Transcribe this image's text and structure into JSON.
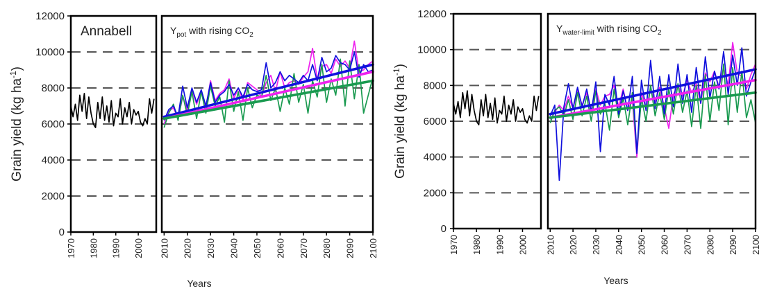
{
  "chart_data": [
    {
      "type": "line",
      "ylabel_main": "Grain yield (kg ha",
      "ylabel_sup": "-1",
      "ylabel_end": ")",
      "xlabel": "Years",
      "ylim": [
        0,
        12000
      ],
      "yticks": [
        0,
        2000,
        4000,
        6000,
        8000,
        10000,
        12000
      ],
      "ytick_labels": [
        "0",
        "2000",
        "4000",
        "6000",
        "8000",
        "10000",
        "12000"
      ],
      "dashed_gridlines": [
        2000,
        4000,
        6000,
        8000,
        10000
      ],
      "historical": {
        "label": "Annabell",
        "xlim": [
          1970,
          2008
        ],
        "xticks": [
          1970,
          1980,
          1990,
          2000
        ],
        "xtick_labels": [
          "1970",
          "1980",
          "1990",
          "2000"
        ],
        "series": [
          {
            "color": "#000000",
            "x": [
              1970,
              1971,
              1972,
              1973,
              1974,
              1975,
              1976,
              1977,
              1978,
              1979,
              1980,
              1981,
              1982,
              1983,
              1984,
              1985,
              1986,
              1987,
              1988,
              1989,
              1990,
              1991,
              1992,
              1993,
              1994,
              1995,
              1996,
              1997,
              1998,
              1999,
              2000,
              2001,
              2002,
              2003,
              2004,
              2005,
              2006,
              2007
            ],
            "y": [
              7000,
              6400,
              7100,
              6200,
              7600,
              6700,
              7700,
              6300,
              7500,
              6600,
              6000,
              5800,
              7200,
              6300,
              7500,
              6200,
              7000,
              6100,
              7300,
              5900,
              6600,
              6400,
              7400,
              6000,
              6900,
              6400,
              7200,
              6000,
              6800,
              6500,
              6700,
              6100,
              5900,
              6300,
              6000,
              7400,
              6600,
              7400
            ]
          }
        ]
      },
      "projection": {
        "title_main": "Y",
        "title_sub": "pot",
        "title_rest": " with rising CO",
        "title_co2sub": "2",
        "xlim": [
          2009,
          2100
        ],
        "xticks": [
          2010,
          2020,
          2030,
          2040,
          2050,
          2060,
          2070,
          2080,
          2090,
          2100
        ],
        "xtick_labels": [
          "2010",
          "2020",
          "2030",
          "2040",
          "2050",
          "2060",
          "2070",
          "2080",
          "2090",
          "2100"
        ],
        "series": [
          {
            "color": "#ee22ee",
            "x": [
              2010,
              2012,
              2014,
              2016,
              2018,
              2020,
              2022,
              2024,
              2026,
              2028,
              2030,
              2032,
              2034,
              2036,
              2038,
              2040,
              2042,
              2044,
              2046,
              2048,
              2050,
              2052,
              2054,
              2056,
              2058,
              2060,
              2062,
              2064,
              2066,
              2068,
              2070,
              2072,
              2074,
              2076,
              2078,
              2080,
              2082,
              2084,
              2086,
              2088,
              2090,
              2092,
              2094,
              2096,
              2098,
              2100
            ],
            "y": [
              6000,
              6700,
              6900,
              6300,
              7500,
              6800,
              7900,
              7100,
              7800,
              6900,
              8400,
              7300,
              7700,
              7900,
              8500,
              7400,
              8000,
              7300,
              8300,
              8100,
              7900,
              7500,
              8300,
              8700,
              7800,
              8900,
              8000,
              8300,
              8400,
              8200,
              8600,
              8900,
              10200,
              8500,
              9200,
              9300,
              8800,
              9600,
              9200,
              9500,
              9100,
              10600,
              8900,
              9000,
              9300,
              9500
            ]
          },
          {
            "color": "#1a9a50",
            "x": [
              2010,
              2012,
              2014,
              2016,
              2018,
              2020,
              2022,
              2024,
              2026,
              2028,
              2030,
              2032,
              2034,
              2036,
              2038,
              2040,
              2042,
              2044,
              2046,
              2048,
              2050,
              2052,
              2054,
              2056,
              2058,
              2060,
              2062,
              2064,
              2066,
              2068,
              2070,
              2072,
              2074,
              2076,
              2078,
              2080,
              2082,
              2084,
              2086,
              2088,
              2090,
              2092,
              2094,
              2096,
              2098,
              2100
            ],
            "y": [
              5800,
              6600,
              7100,
              6200,
              7600,
              6500,
              7800,
              6300,
              7800,
              6600,
              8100,
              7000,
              7500,
              6100,
              8400,
              6700,
              7800,
              6200,
              8000,
              6900,
              7600,
              7500,
              8700,
              7300,
              8000,
              6700,
              8000,
              7100,
              8800,
              7200,
              8200,
              6600,
              8400,
              7500,
              9300,
              7200,
              8500,
              7600,
              9600,
              7000,
              9500,
              7400,
              9300,
              6600,
              7600,
              8600
            ]
          },
          {
            "color": "#1111dd",
            "x": [
              2010,
              2012,
              2014,
              2016,
              2018,
              2020,
              2022,
              2024,
              2026,
              2028,
              2030,
              2032,
              2034,
              2036,
              2038,
              2040,
              2042,
              2044,
              2046,
              2048,
              2050,
              2052,
              2054,
              2056,
              2058,
              2060,
              2062,
              2064,
              2066,
              2068,
              2070,
              2072,
              2074,
              2076,
              2078,
              2080,
              2082,
              2084,
              2086,
              2088,
              2090,
              2092,
              2094,
              2096,
              2098,
              2100
            ],
            "y": [
              6200,
              6800,
              7000,
              6400,
              8100,
              6900,
              8000,
              7200,
              7900,
              7000,
              8300,
              7200,
              7600,
              7800,
              8200,
              7600,
              8000,
              7500,
              8200,
              7900,
              7800,
              7900,
              9400,
              8000,
              8300,
              8900,
              8400,
              8700,
              8500,
              8300,
              8700,
              8400,
              9300,
              8400,
              9700,
              8900,
              9100,
              9800,
              9400,
              9300,
              9000,
              10000,
              8600,
              9300,
              8900,
              9000
            ]
          }
        ],
        "trendlines": [
          {
            "color": "#1111dd",
            "x": [
              2010,
              2100
            ],
            "y": [
              6400,
              9300
            ]
          },
          {
            "color": "#ee22ee",
            "x": [
              2010,
              2100
            ],
            "y": [
              6300,
              8900
            ]
          },
          {
            "color": "#1a9a50",
            "x": [
              2010,
              2100
            ],
            "y": [
              6300,
              8400
            ]
          }
        ]
      }
    },
    {
      "type": "line",
      "ylabel_main": "Grain yield (kg ha",
      "ylabel_sup": "-1",
      "ylabel_end": ")",
      "xlabel": "Years",
      "ylim": [
        0,
        12000
      ],
      "yticks": [
        0,
        2000,
        4000,
        6000,
        8000,
        10000,
        12000
      ],
      "ytick_labels": [
        "0",
        "2000",
        "4000",
        "6000",
        "8000",
        "10000",
        "12000"
      ],
      "dashed_gridlines": [
        2000,
        4000,
        6000,
        8000,
        10000
      ],
      "historical": {
        "label": "",
        "xlim": [
          1970,
          2008
        ],
        "xticks": [
          1970,
          1980,
          1990,
          2000
        ],
        "xtick_labels": [
          "1970",
          "1980",
          "1990",
          "2000"
        ],
        "series": [
          {
            "color": "#000000",
            "x": [
              1970,
              1971,
              1972,
              1973,
              1974,
              1975,
              1976,
              1977,
              1978,
              1979,
              1980,
              1981,
              1982,
              1983,
              1984,
              1985,
              1986,
              1987,
              1988,
              1989,
              1990,
              1991,
              1992,
              1993,
              1994,
              1995,
              1996,
              1997,
              1998,
              1999,
              2000,
              2001,
              2002,
              2003,
              2004,
              2005,
              2006,
              2007
            ],
            "y": [
              7000,
              6400,
              7100,
              6200,
              7600,
              6700,
              7700,
              6300,
              7500,
              6600,
              6000,
              5800,
              7200,
              6300,
              7500,
              6200,
              7000,
              6100,
              7300,
              5900,
              6600,
              6400,
              7400,
              6000,
              6900,
              6400,
              7200,
              6000,
              6800,
              6500,
              6700,
              6100,
              5900,
              6300,
              6000,
              7400,
              6600,
              7400
            ]
          }
        ]
      },
      "projection": {
        "title_main": "Y",
        "title_sub": "water-limit",
        "title_rest": " with rising CO",
        "title_co2sub": "2",
        "xlim": [
          2009,
          2100
        ],
        "xticks": [
          2010,
          2020,
          2030,
          2040,
          2050,
          2060,
          2070,
          2080,
          2090,
          2100
        ],
        "xtick_labels": [
          "2010",
          "2020",
          "2030",
          "2040",
          "2050",
          "2060",
          "2070",
          "2080",
          "2090",
          "2100"
        ],
        "series": [
          {
            "color": "#ee22ee",
            "x": [
              2010,
              2012,
              2014,
              2016,
              2018,
              2020,
              2022,
              2024,
              2026,
              2028,
              2030,
              2032,
              2034,
              2036,
              2038,
              2040,
              2042,
              2044,
              2046,
              2048,
              2050,
              2052,
              2054,
              2056,
              2058,
              2060,
              2062,
              2064,
              2066,
              2068,
              2070,
              2072,
              2074,
              2076,
              2078,
              2080,
              2082,
              2084,
              2086,
              2088,
              2090,
              2092,
              2094,
              2096,
              2098,
              2100
            ],
            "y": [
              6100,
              6500,
              6900,
              6600,
              7400,
              6700,
              7700,
              6900,
              7600,
              6600,
              7800,
              6900,
              7400,
              7500,
              8000,
              6800,
              7800,
              6600,
              7200,
              4000,
              7600,
              6700,
              7800,
              7100,
              7900,
              6800,
              5600,
              7500,
              8000,
              7400,
              8300,
              7600,
              8100,
              7000,
              8700,
              8200,
              8800,
              7900,
              9000,
              8000,
              10400,
              8700,
              8500,
              7800,
              8600,
              9200
            ]
          },
          {
            "color": "#1a9a50",
            "x": [
              2010,
              2012,
              2014,
              2016,
              2018,
              2020,
              2022,
              2024,
              2026,
              2028,
              2030,
              2032,
              2034,
              2036,
              2038,
              2040,
              2042,
              2044,
              2046,
              2048,
              2050,
              2052,
              2054,
              2056,
              2058,
              2060,
              2062,
              2064,
              2066,
              2068,
              2070,
              2072,
              2074,
              2076,
              2078,
              2080,
              2082,
              2084,
              2086,
              2088,
              2090,
              2092,
              2094,
              2096,
              2098,
              2100
            ],
            "y": [
              5900,
              6600,
              6800,
              6300,
              7200,
              6100,
              7600,
              6300,
              7400,
              6000,
              7700,
              6400,
              7000,
              5500,
              7800,
              6200,
              7300,
              5800,
              7600,
              4300,
              7300,
              6000,
              8000,
              6300,
              7600,
              6100,
              7800,
              6400,
              8100,
              6500,
              7700,
              5700,
              8000,
              5600,
              8600,
              6000,
              8200,
              6600,
              9200,
              5800,
              9000,
              6500,
              8800,
              6200,
              7200,
              5900
            ]
          },
          {
            "color": "#1111dd",
            "x": [
              2010,
              2012,
              2014,
              2016,
              2018,
              2020,
              2022,
              2024,
              2026,
              2028,
              2030,
              2032,
              2034,
              2036,
              2038,
              2040,
              2042,
              2044,
              2046,
              2048,
              2050,
              2052,
              2054,
              2056,
              2058,
              2060,
              2062,
              2064,
              2066,
              2068,
              2070,
              2072,
              2074,
              2076,
              2078,
              2080,
              2082,
              2084,
              2086,
              2088,
              2090,
              2092,
              2094,
              2096,
              2098,
              2100
            ],
            "y": [
              6300,
              6900,
              2700,
              6800,
              8100,
              6700,
              7900,
              6800,
              7800,
              6500,
              8200,
              4300,
              7500,
              6900,
              8500,
              6400,
              7700,
              6600,
              8500,
              4200,
              8300,
              6600,
              9400,
              6700,
              8500,
              6400,
              8600,
              6800,
              9200,
              7000,
              8600,
              6500,
              9000,
              7000,
              9600,
              7300,
              8800,
              7800,
              9900,
              7500,
              9700,
              8000,
              10100,
              7400,
              8200,
              8900
            ]
          }
        ],
        "trendlines": [
          {
            "color": "#1111dd",
            "x": [
              2010,
              2100
            ],
            "y": [
              6400,
              8900
            ]
          },
          {
            "color": "#ee22ee",
            "x": [
              2010,
              2100
            ],
            "y": [
              6200,
              8300
            ]
          },
          {
            "color": "#1a9a50",
            "x": [
              2010,
              2100
            ],
            "y": [
              6200,
              7600
            ]
          }
        ]
      }
    }
  ]
}
